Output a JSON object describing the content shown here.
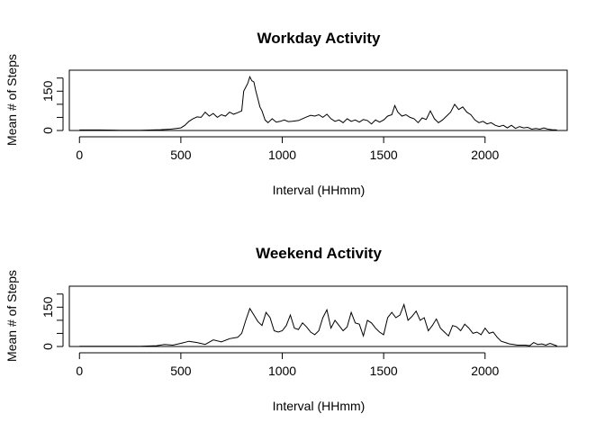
{
  "chart_data": [
    {
      "type": "line",
      "title": "Workday Activity",
      "xlabel": "Interval (HHmm)",
      "ylabel": "Mean # of Steps",
      "xticks": [
        0,
        500,
        1000,
        1500,
        2000
      ],
      "yticks": [
        0,
        50,
        100,
        150,
        200
      ],
      "ytick_labels": [
        "0",
        "",
        "",
        "150",
        ""
      ],
      "xlim": [
        -50,
        2405
      ],
      "ylim": [
        0,
        230
      ],
      "series": [
        {
          "color": "#000000",
          "x": [
            0,
            100,
            200,
            300,
            400,
            450,
            500,
            520,
            540,
            560,
            580,
            600,
            620,
            640,
            660,
            680,
            700,
            720,
            740,
            760,
            780,
            800,
            810,
            820,
            830,
            840,
            850,
            860,
            870,
            880,
            890,
            900,
            915,
            930,
            950,
            970,
            990,
            1010,
            1030,
            1050,
            1080,
            1100,
            1120,
            1140,
            1160,
            1180,
            1200,
            1220,
            1240,
            1260,
            1280,
            1300,
            1320,
            1340,
            1360,
            1380,
            1400,
            1420,
            1440,
            1460,
            1480,
            1500,
            1520,
            1540,
            1555,
            1570,
            1590,
            1610,
            1630,
            1650,
            1670,
            1690,
            1710,
            1720,
            1730,
            1750,
            1770,
            1790,
            1810,
            1830,
            1850,
            1870,
            1890,
            1910,
            1930,
            1950,
            1970,
            1990,
            2010,
            2030,
            2050,
            2070,
            2090,
            2110,
            2130,
            2150,
            2170,
            2190,
            2210,
            2230,
            2250,
            2270,
            2290,
            2310,
            2330,
            2355
          ],
          "y": [
            2,
            2,
            1,
            1,
            3,
            5,
            10,
            20,
            35,
            45,
            52,
            50,
            70,
            55,
            65,
            50,
            60,
            55,
            70,
            62,
            68,
            75,
            150,
            165,
            180,
            205,
            190,
            185,
            150,
            120,
            90,
            75,
            40,
            30,
            45,
            32,
            35,
            40,
            34,
            35,
            38,
            45,
            52,
            58,
            55,
            60,
            50,
            62,
            45,
            35,
            40,
            30,
            45,
            35,
            40,
            32,
            42,
            38,
            25,
            40,
            32,
            40,
            55,
            60,
            95,
            70,
            55,
            60,
            50,
            45,
            30,
            48,
            42,
            58,
            75,
            45,
            30,
            40,
            55,
            70,
            100,
            80,
            90,
            70,
            60,
            40,
            30,
            35,
            25,
            30,
            20,
            15,
            20,
            10,
            20,
            8,
            15,
            10,
            12,
            5,
            8,
            5,
            10,
            5,
            3,
            2
          ]
        }
      ]
    },
    {
      "type": "line",
      "title": "Weekend Activity",
      "xlabel": "Interval (HHmm)",
      "ylabel": "Mean # of Steps",
      "xticks": [
        0,
        500,
        1000,
        1500,
        2000
      ],
      "yticks": [
        0,
        50,
        100,
        150,
        200
      ],
      "ytick_labels": [
        "0",
        "",
        "",
        "150",
        ""
      ],
      "xlim": [
        -50,
        2405
      ],
      "ylim": [
        0,
        230
      ],
      "series": [
        {
          "color": "#000000",
          "x": [
            0,
            100,
            200,
            300,
            380,
            420,
            460,
            500,
            540,
            580,
            620,
            660,
            700,
            740,
            780,
            800,
            820,
            840,
            860,
            880,
            900,
            920,
            940,
            960,
            980,
            1000,
            1020,
            1040,
            1060,
            1080,
            1100,
            1120,
            1140,
            1160,
            1180,
            1200,
            1220,
            1240,
            1260,
            1280,
            1300,
            1320,
            1340,
            1360,
            1380,
            1400,
            1420,
            1440,
            1460,
            1480,
            1500,
            1520,
            1540,
            1560,
            1580,
            1600,
            1620,
            1640,
            1660,
            1680,
            1700,
            1720,
            1740,
            1760,
            1780,
            1800,
            1820,
            1840,
            1860,
            1880,
            1900,
            1920,
            1940,
            1960,
            1980,
            2000,
            2020,
            2040,
            2060,
            2080,
            2100,
            2120,
            2140,
            2160,
            2180,
            2200,
            2220,
            2240,
            2260,
            2280,
            2300,
            2320,
            2355
          ],
          "y": [
            1,
            1,
            1,
            1,
            3,
            8,
            5,
            12,
            20,
            15,
            8,
            25,
            18,
            30,
            35,
            50,
            100,
            145,
            120,
            95,
            80,
            130,
            110,
            60,
            55,
            60,
            80,
            120,
            70,
            65,
            90,
            75,
            55,
            45,
            60,
            110,
            140,
            70,
            100,
            80,
            60,
            75,
            130,
            90,
            85,
            40,
            100,
            90,
            70,
            55,
            45,
            110,
            130,
            110,
            120,
            160,
            100,
            115,
            135,
            100,
            110,
            60,
            80,
            105,
            70,
            55,
            40,
            80,
            75,
            60,
            85,
            70,
            50,
            55,
            45,
            70,
            50,
            55,
            35,
            20,
            15,
            10,
            8,
            5,
            5,
            5,
            3,
            15,
            8,
            10,
            5,
            12,
            2
          ]
        }
      ]
    }
  ]
}
